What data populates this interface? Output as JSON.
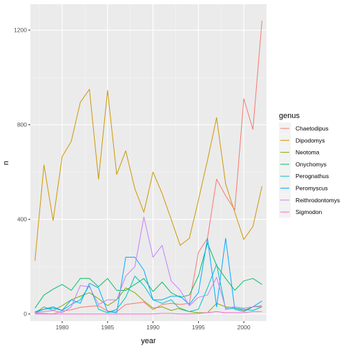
{
  "chart_data": {
    "type": "line",
    "xlabel": "year",
    "ylabel": "n",
    "xlim": [
      1976.5,
      2002.5
    ],
    "ylim": [
      -30,
      1310
    ],
    "x_ticks": [
      1980,
      1985,
      1990,
      1995,
      2000
    ],
    "y_ticks": [
      0,
      400,
      800,
      1200
    ],
    "grid": true,
    "legend_title": "genus",
    "legend_position": "right",
    "x": [
      1977,
      1978,
      1979,
      1980,
      1981,
      1982,
      1983,
      1984,
      1985,
      1986,
      1987,
      1988,
      1989,
      1990,
      1991,
      1992,
      1993,
      1994,
      1995,
      1996,
      1997,
      1998,
      1999,
      2000,
      2001,
      2002
    ],
    "series": [
      {
        "name": "Chaetodipus",
        "color": "#F8766D",
        "values": [
          3,
          2,
          0,
          12,
          18,
          28,
          32,
          35,
          12,
          10,
          40,
          45,
          50,
          18,
          40,
          45,
          40,
          45,
          260,
          320,
          570,
          500,
          440,
          910,
          780,
          1240
        ]
      },
      {
        "name": "Dipodomys",
        "color": "#CD9600",
        "values": [
          225,
          630,
          395,
          665,
          730,
          895,
          950,
          570,
          945,
          590,
          690,
          530,
          430,
          600,
          510,
          400,
          290,
          320,
          480,
          650,
          830,
          550,
          430,
          315,
          370,
          540
        ]
      },
      {
        "name": "Neotoma",
        "color": "#7CAE00",
        "values": [
          5,
          30,
          15,
          35,
          60,
          75,
          90,
          65,
          35,
          60,
          110,
          90,
          55,
          25,
          30,
          15,
          25,
          10,
          5,
          5,
          45,
          30,
          25,
          15,
          30,
          35
        ]
      },
      {
        "name": "Onychomys",
        "color": "#00BE67",
        "values": [
          25,
          80,
          105,
          125,
          100,
          150,
          150,
          115,
          150,
          100,
          100,
          125,
          150,
          95,
          135,
          90,
          70,
          80,
          160,
          300,
          205,
          150,
          100,
          140,
          150,
          125
        ]
      },
      {
        "name": "Perognathus",
        "color": "#00BFC4",
        "values": [
          5,
          20,
          25,
          15,
          40,
          60,
          120,
          20,
          5,
          20,
          70,
          160,
          120,
          60,
          45,
          60,
          20,
          10,
          20,
          110,
          210,
          20,
          25,
          20,
          15,
          30
        ]
      },
      {
        "name": "Peromyscus",
        "color": "#00A9FF",
        "values": [
          10,
          20,
          30,
          15,
          60,
          45,
          130,
          110,
          10,
          5,
          240,
          240,
          185,
          60,
          60,
          75,
          75,
          40,
          90,
          320,
          30,
          320,
          20,
          10,
          30,
          55
        ]
      },
      {
        "name": "Reithrodontomys",
        "color": "#C77CFF",
        "values": [
          5,
          10,
          15,
          5,
          30,
          120,
          115,
          40,
          60,
          60,
          160,
          200,
          410,
          240,
          290,
          140,
          100,
          35,
          70,
          80,
          155,
          25,
          30,
          25,
          30,
          30
        ]
      },
      {
        "name": "Sigmodon",
        "color": "#FF61CC",
        "values": [
          0,
          0,
          0,
          0,
          0,
          0,
          0,
          0,
          0,
          0,
          0,
          0,
          0,
          0,
          2,
          2,
          0,
          0,
          2,
          5,
          10,
          5,
          5,
          5,
          10,
          10
        ]
      }
    ]
  }
}
